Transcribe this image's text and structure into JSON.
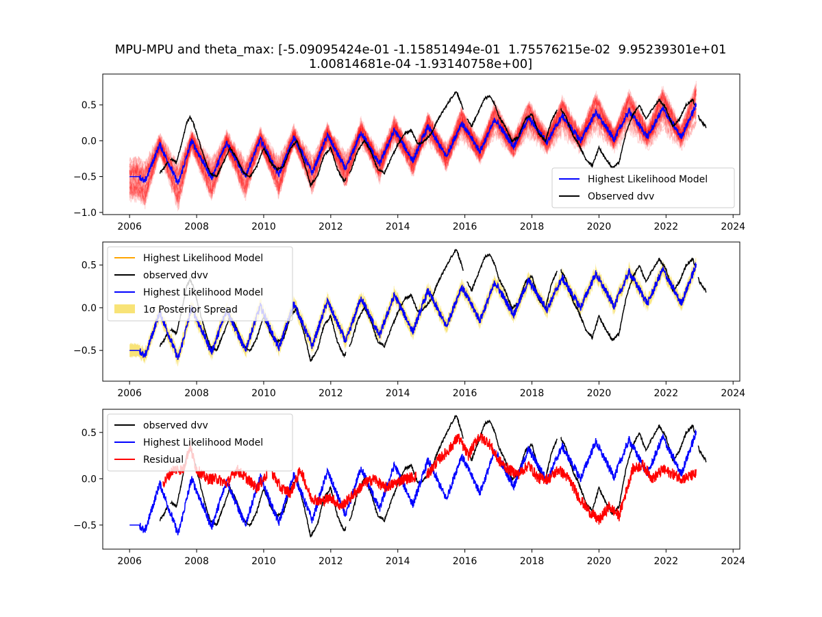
{
  "figure": {
    "title_line1": "MPU-MPU and theta_max: [-5.09095424e-01 -1.15851494e-01  1.75576215e-02  9.95239301e+01",
    "title_line2": "1.00814681e-04 -1.93140758e+00]"
  },
  "chart_data": [
    {
      "type": "line",
      "panel": "top",
      "xlim": [
        2005.2,
        2024.2
      ],
      "ylim": [
        -1.03,
        0.93
      ],
      "x_ticks": [
        2006,
        2008,
        2010,
        2012,
        2014,
        2016,
        2018,
        2020,
        2022,
        2024
      ],
      "x_tick_labels": [
        "2006",
        "2008",
        "2010",
        "2012",
        "2014",
        "2016",
        "2018",
        "2020",
        "2022",
        "2024"
      ],
      "y_ticks": [
        -1.0,
        -0.5,
        0.0,
        0.5
      ],
      "y_tick_labels": [
        "−1.0",
        "−0.5",
        "0.0",
        "0.5"
      ],
      "legend_position": "lower right",
      "legend": [
        "Highest Likelihood Model",
        "Observed dvv"
      ],
      "series": [
        {
          "name": "Highest Likelihood Model",
          "color": "#0000ff",
          "role": "model"
        },
        {
          "name": "Observed dvv",
          "color": "#000000",
          "role": "observed"
        },
        {
          "color": "#ff0000",
          "role": "posterior_samples",
          "opacity": 0.15
        }
      ]
    },
    {
      "type": "line",
      "panel": "middle",
      "xlim": [
        2005.2,
        2024.2
      ],
      "ylim": [
        -0.86,
        0.77
      ],
      "x_ticks": [
        2006,
        2008,
        2010,
        2012,
        2014,
        2016,
        2018,
        2020,
        2022,
        2024
      ],
      "x_tick_labels": [
        "2006",
        "2008",
        "2010",
        "2012",
        "2014",
        "2016",
        "2018",
        "2020",
        "2022",
        "2024"
      ],
      "y_ticks": [
        -0.5,
        0.0,
        0.5
      ],
      "y_tick_labels": [
        "−0.5",
        "0.0",
        "0.5"
      ],
      "legend_position": "upper left",
      "legend": [
        "Highest Likelihood Model",
        "observed dvv",
        "Highest Likelihood Model",
        "1σ Posterior Spread"
      ],
      "legend_colors": [
        "#ffa500",
        "#000000",
        "#0000ff",
        "#f5d94a"
      ],
      "series": [
        {
          "name": "Highest Likelihood Model",
          "color": "#ffa500",
          "role": "model"
        },
        {
          "name": "observed dvv",
          "color": "#000000",
          "role": "observed"
        },
        {
          "name": "Highest Likelihood Model",
          "color": "#0000ff",
          "role": "model"
        },
        {
          "name": "1σ Posterior Spread",
          "color": "#f5d94a",
          "role": "band",
          "band_halfwidth": 0.06
        }
      ]
    },
    {
      "type": "line",
      "panel": "bottom",
      "xlim": [
        2005.2,
        2024.2
      ],
      "ylim": [
        -0.76,
        0.75
      ],
      "x_ticks": [
        2006,
        2008,
        2010,
        2012,
        2014,
        2016,
        2018,
        2020,
        2022,
        2024
      ],
      "x_tick_labels": [
        "2006",
        "2008",
        "2010",
        "2012",
        "2014",
        "2016",
        "2018",
        "2020",
        "2022",
        "2024"
      ],
      "y_ticks": [
        -0.5,
        0.0,
        0.5
      ],
      "y_tick_labels": [
        "−0.5",
        "0.0",
        "0.5"
      ],
      "legend_position": "upper left",
      "legend": [
        "observed dvv",
        "Highest Likelihood Model",
        "Residual"
      ],
      "legend_colors": [
        "#000000",
        "#0000ff",
        "#ff0000"
      ],
      "series": [
        {
          "name": "observed dvv",
          "color": "#000000",
          "role": "observed"
        },
        {
          "name": "Highest Likelihood Model",
          "color": "#0000ff",
          "role": "model"
        },
        {
          "name": "Residual",
          "color": "#ff0000",
          "role": "residual"
        }
      ]
    }
  ],
  "observed_dvv": {
    "x": [
      2006.9,
      2007.0,
      2007.2,
      2007.4,
      2007.6,
      2007.7,
      2007.8,
      2007.9,
      2008.0,
      2008.2,
      2008.4,
      2008.6,
      2008.8,
      2009.0,
      2009.2,
      2009.4,
      2009.6,
      2009.8,
      2010.0,
      2010.2,
      2010.4,
      2010.6,
      2010.8,
      2011.0,
      2011.2,
      2011.4,
      2011.6,
      2011.8,
      2012.0,
      2012.2,
      2012.4,
      2012.6,
      2012.8,
      2013.0,
      2013.2,
      2013.4,
      2013.6,
      2013.8,
      2014.0,
      2014.2,
      2014.4,
      2014.6,
      2014.8,
      2015.0,
      2015.2,
      2015.4,
      2015.6,
      2015.75,
      2015.9,
      2016.0,
      2016.2,
      2016.4,
      2016.6,
      2016.75,
      2016.9,
      2017.0,
      2017.2,
      2017.4,
      2017.6,
      2017.8,
      2018.0,
      2018.2,
      2018.4,
      2018.6,
      2018.8,
      2019.0,
      2019.2,
      2019.4,
      2019.6,
      2019.8,
      2020.0,
      2020.2,
      2020.4,
      2020.6,
      2020.8,
      2021.0,
      2021.2,
      2021.4,
      2021.6,
      2021.8,
      2022.0,
      2022.2,
      2022.4,
      2022.6,
      2022.8,
      2023.0,
      2023.2
    ],
    "y": [
      -0.45,
      -0.4,
      -0.25,
      -0.3,
      0.05,
      0.25,
      0.33,
      0.25,
      0.1,
      -0.2,
      -0.45,
      -0.5,
      -0.3,
      -0.1,
      -0.25,
      -0.45,
      -0.5,
      -0.35,
      -0.1,
      -0.3,
      -0.4,
      -0.35,
      -0.1,
      0.0,
      -0.3,
      -0.62,
      -0.5,
      -0.2,
      -0.1,
      -0.4,
      -0.57,
      -0.42,
      -0.15,
      0.0,
      -0.15,
      -0.4,
      -0.45,
      -0.25,
      -0.05,
      0.1,
      0.15,
      -0.05,
      0.0,
      0.1,
      0.3,
      0.45,
      0.6,
      0.69,
      0.5,
      0.35,
      0.2,
      0.4,
      0.6,
      0.62,
      0.5,
      0.35,
      0.2,
      0.0,
      0.05,
      0.3,
      0.37,
      0.1,
      0.0,
      0.3,
      0.47,
      0.35,
      0.1,
      -0.05,
      -0.25,
      -0.35,
      -0.1,
      -0.25,
      -0.38,
      -0.3,
      0.1,
      0.35,
      0.5,
      0.3,
      0.45,
      0.57,
      0.45,
      0.2,
      0.3,
      0.5,
      0.57,
      0.3,
      0.19
    ]
  },
  "model": {
    "x": [
      2006.0,
      2006.3,
      2006.45,
      2006.9,
      2007.45,
      2007.85,
      2008.45,
      2008.9,
      2009.45,
      2009.9,
      2010.45,
      2010.9,
      2011.45,
      2011.9,
      2012.45,
      2012.9,
      2013.45,
      2013.9,
      2014.45,
      2014.9,
      2015.45,
      2015.9,
      2016.45,
      2016.9,
      2017.45,
      2017.9,
      2018.45,
      2018.9,
      2019.45,
      2019.9,
      2020.45,
      2020.9,
      2021.45,
      2021.9,
      2022.45,
      2022.9
    ],
    "y": [
      -0.5,
      -0.5,
      -0.58,
      -0.05,
      -0.6,
      0.0,
      -0.52,
      -0.02,
      -0.5,
      0.02,
      -0.48,
      0.05,
      -0.45,
      0.08,
      -0.4,
      0.12,
      -0.33,
      0.15,
      -0.28,
      0.2,
      -0.22,
      0.25,
      -0.15,
      0.3,
      -0.08,
      0.32,
      -0.02,
      0.35,
      0.0,
      0.4,
      0.02,
      0.42,
      0.05,
      0.45,
      0.05,
      0.5
    ]
  },
  "residual": {
    "x": [
      2007.0,
      2007.3,
      2007.6,
      2007.8,
      2008.0,
      2008.3,
      2008.6,
      2008.9,
      2009.2,
      2009.5,
      2009.8,
      2010.2,
      2010.5,
      2010.8,
      2011.1,
      2011.4,
      2011.7,
      2012.0,
      2012.3,
      2012.6,
      2013.0,
      2013.3,
      2013.6,
      2013.9,
      2014.2,
      2014.9,
      2015.2,
      2015.5,
      2015.8,
      2016.1,
      2016.4,
      2016.7,
      2017.0,
      2017.3,
      2017.6,
      2017.9,
      2018.2,
      2018.5,
      2018.8,
      2019.1,
      2019.4,
      2019.7,
      2020.0,
      2020.3,
      2020.6,
      2021.0,
      2021.3,
      2021.6,
      2021.9,
      2022.2,
      2022.5,
      2022.9
    ],
    "y": [
      -0.05,
      0.1,
      0.1,
      0.35,
      0.1,
      0.0,
      0.0,
      -0.05,
      0.1,
      0.0,
      -0.1,
      0.1,
      -0.1,
      -0.15,
      0.1,
      -0.2,
      -0.25,
      -0.2,
      -0.3,
      -0.2,
      -0.05,
      0.0,
      -0.1,
      -0.05,
      0.0,
      0.05,
      0.2,
      0.3,
      0.45,
      0.25,
      0.45,
      0.4,
      0.2,
      0.1,
      0.05,
      0.15,
      0.0,
      0.0,
      0.1,
      0.0,
      -0.2,
      -0.35,
      -0.45,
      -0.3,
      -0.4,
      0.1,
      0.15,
      0.0,
      0.1,
      0.05,
      0.0,
      0.05
    ]
  }
}
